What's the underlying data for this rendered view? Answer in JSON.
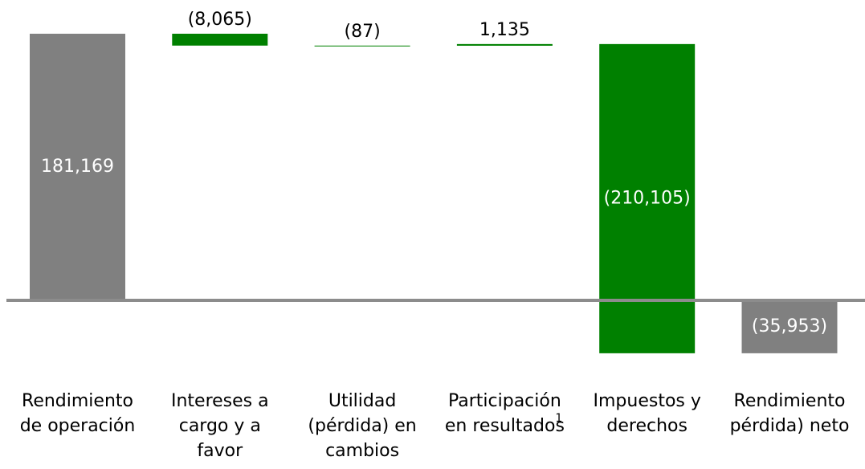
{
  "chart_data": {
    "type": "waterfall",
    "categories": [
      [
        "Rendimiento",
        "de operación"
      ],
      [
        "Intereses a",
        "cargo y a",
        "favor"
      ],
      [
        "Utilidad",
        "(pérdida) en",
        "cambios"
      ],
      [
        "Participación",
        "en resultados"
      ],
      [
        "Impuestos y",
        "derechos"
      ],
      [
        "Rendimiento",
        "pérdida) neto"
      ]
    ],
    "footnote_marks": [
      null,
      null,
      null,
      "1",
      null,
      null
    ],
    "values": [
      181169,
      -8065,
      -87,
      1135,
      -210105,
      -35953
    ],
    "value_labels": [
      "181,169",
      "(8,065)",
      "(87)",
      "1,135",
      "(210,105)",
      "(35,953)"
    ],
    "measures": [
      "total",
      "relative",
      "relative",
      "relative",
      "relative",
      "total"
    ],
    "total_color": "#808080",
    "delta_color": "#008000",
    "baseline_color": "#8c8c8c"
  }
}
